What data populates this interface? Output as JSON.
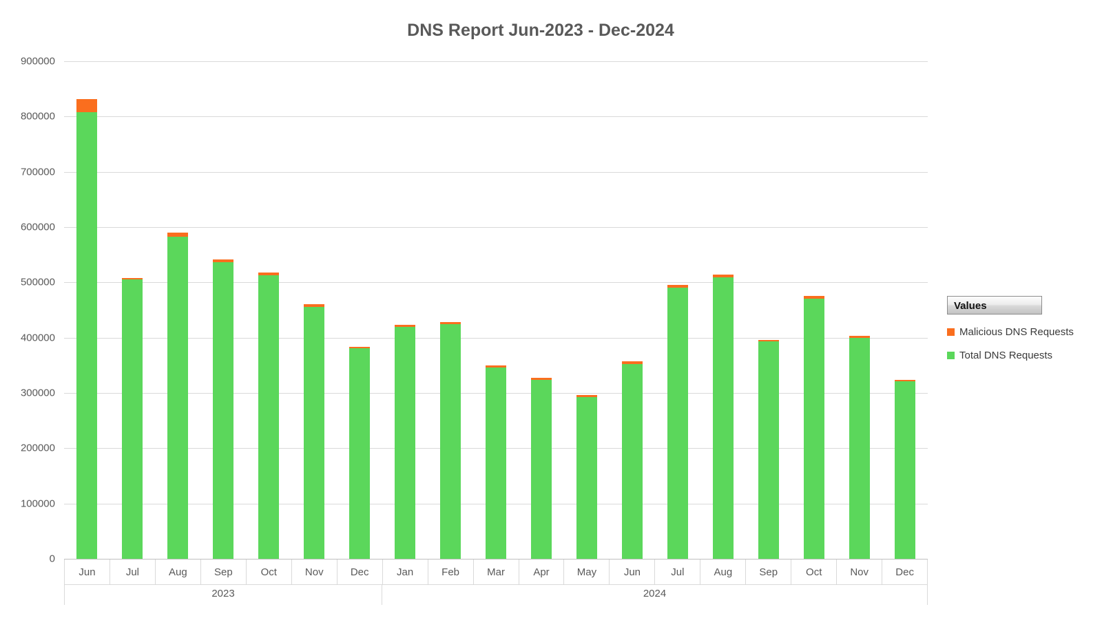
{
  "title": "DNS Report Jun-2023 - Dec-2024",
  "legend": {
    "header": "Values",
    "items": [
      {
        "label": "Malicious DNS Requests",
        "series": "malicious",
        "color": "#fa6e1e"
      },
      {
        "label": "Total DNS Requests",
        "series": "total",
        "color": "#5bd75b"
      }
    ]
  },
  "colors": {
    "total_green": "#5bd75b",
    "malicious_orange": "#fa6e1e",
    "gridline": "#d9d9d9",
    "axis_text": "#595959",
    "title_text": "#595959"
  },
  "chart_data": {
    "type": "bar",
    "stacked": true,
    "title": "DNS Report Jun-2023 - Dec-2024",
    "categories": [
      "Jun",
      "Jul",
      "Aug",
      "Sep",
      "Oct",
      "Nov",
      "Dec",
      "Jan",
      "Feb",
      "Mar",
      "Apr",
      "May",
      "Jun",
      "Jul",
      "Aug",
      "Sep",
      "Oct",
      "Nov",
      "Dec"
    ],
    "category_years": [
      2023,
      2023,
      2023,
      2023,
      2023,
      2023,
      2023,
      2024,
      2024,
      2024,
      2024,
      2024,
      2024,
      2024,
      2024,
      2024,
      2024,
      2024,
      2024
    ],
    "year_groups": [
      {
        "label": "2023",
        "span": 7
      },
      {
        "label": "2024",
        "span": 12
      }
    ],
    "series": [
      {
        "name": "Total DNS Requests",
        "color": "#5bd75b",
        "values": [
          808000,
          505000,
          582000,
          537000,
          513000,
          456000,
          381000,
          420000,
          425000,
          346000,
          324000,
          292000,
          352000,
          490000,
          509000,
          393000,
          470000,
          399000,
          321000
        ]
      },
      {
        "name": "Malicious DNS Requests",
        "color": "#fa6e1e",
        "values": [
          24000,
          3000,
          8000,
          4000,
          5000,
          4000,
          3000,
          3000,
          3000,
          4000,
          4000,
          4000,
          5000,
          5000,
          5000,
          3000,
          6000,
          4000,
          3000
        ]
      }
    ],
    "xlabel": "",
    "ylabel": "",
    "ylim": [
      0,
      900000
    ],
    "ytick_interval": 100000,
    "yticks": [
      "900000",
      "800000",
      "700000",
      "600000",
      "500000",
      "400000",
      "300000",
      "200000",
      "100000",
      "0"
    ],
    "grid": true,
    "legend_position": "right",
    "legend_title": "Values"
  }
}
